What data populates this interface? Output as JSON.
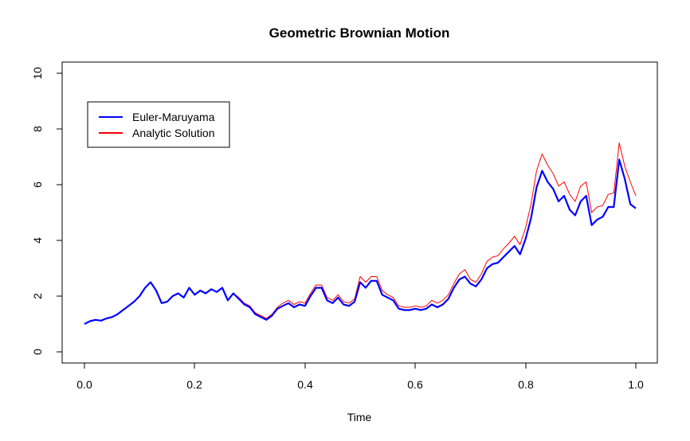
{
  "chart_data": {
    "type": "line",
    "title": "Geometric Brownian Motion",
    "xlabel": "Time",
    "ylabel": "",
    "xlim": [
      0.0,
      1.0
    ],
    "ylim": [
      0,
      10
    ],
    "xticks": [
      "0.0",
      "0.2",
      "0.4",
      "0.6",
      "0.8",
      "1.0"
    ],
    "yticks": [
      "0",
      "2",
      "4",
      "6",
      "8",
      "10"
    ],
    "grid": false,
    "legend_position": "top-left",
    "series": [
      {
        "name": "Euler-Maruyama",
        "color": "#0000ff",
        "x": [
          0.0,
          0.01,
          0.02,
          0.03,
          0.04,
          0.05,
          0.06,
          0.07,
          0.08,
          0.09,
          0.1,
          0.11,
          0.12,
          0.13,
          0.14,
          0.15,
          0.16,
          0.17,
          0.18,
          0.19,
          0.2,
          0.21,
          0.22,
          0.23,
          0.24,
          0.25,
          0.26,
          0.27,
          0.28,
          0.29,
          0.3,
          0.31,
          0.32,
          0.33,
          0.34,
          0.35,
          0.36,
          0.37,
          0.38,
          0.39,
          0.4,
          0.41,
          0.42,
          0.43,
          0.44,
          0.45,
          0.46,
          0.47,
          0.48,
          0.49,
          0.5,
          0.51,
          0.52,
          0.53,
          0.54,
          0.55,
          0.56,
          0.57,
          0.58,
          0.59,
          0.6,
          0.61,
          0.62,
          0.63,
          0.64,
          0.65,
          0.66,
          0.67,
          0.68,
          0.69,
          0.7,
          0.71,
          0.72,
          0.73,
          0.74,
          0.75,
          0.76,
          0.77,
          0.78,
          0.79,
          0.8,
          0.81,
          0.82,
          0.83,
          0.84,
          0.85,
          0.86,
          0.87,
          0.88,
          0.89,
          0.9,
          0.91,
          0.92,
          0.93,
          0.94,
          0.95,
          0.96,
          0.97,
          0.98,
          0.99,
          1.0
        ],
        "values": [
          1.0,
          1.1,
          1.15,
          1.12,
          1.2,
          1.25,
          1.35,
          1.5,
          1.65,
          1.8,
          2.0,
          2.3,
          2.5,
          2.2,
          1.75,
          1.8,
          2.0,
          2.1,
          1.95,
          2.3,
          2.05,
          2.2,
          2.1,
          2.25,
          2.15,
          2.3,
          1.85,
          2.1,
          1.9,
          1.7,
          1.6,
          1.35,
          1.25,
          1.15,
          1.3,
          1.55,
          1.65,
          1.75,
          1.6,
          1.7,
          1.65,
          2.0,
          2.3,
          2.3,
          1.85,
          1.75,
          1.95,
          1.7,
          1.65,
          1.8,
          2.5,
          2.3,
          2.55,
          2.55,
          2.05,
          1.95,
          1.85,
          1.55,
          1.5,
          1.5,
          1.55,
          1.5,
          1.55,
          1.7,
          1.6,
          1.7,
          1.9,
          2.3,
          2.6,
          2.7,
          2.45,
          2.35,
          2.6,
          3.0,
          3.15,
          3.2,
          3.4,
          3.6,
          3.8,
          3.5,
          4.05,
          4.8,
          5.9,
          6.5,
          6.1,
          5.85,
          5.4,
          5.6,
          5.1,
          4.9,
          5.4,
          5.6,
          4.55,
          4.75,
          4.85,
          5.2,
          5.2,
          6.9,
          6.2,
          5.3,
          5.15
        ]
      },
      {
        "name": "Analytic Solution",
        "color": "#ff0000",
        "x": [
          0.0,
          0.01,
          0.02,
          0.03,
          0.04,
          0.05,
          0.06,
          0.07,
          0.08,
          0.09,
          0.1,
          0.11,
          0.12,
          0.13,
          0.14,
          0.15,
          0.16,
          0.17,
          0.18,
          0.19,
          0.2,
          0.21,
          0.22,
          0.23,
          0.24,
          0.25,
          0.26,
          0.27,
          0.28,
          0.29,
          0.3,
          0.31,
          0.32,
          0.33,
          0.34,
          0.35,
          0.36,
          0.37,
          0.38,
          0.39,
          0.4,
          0.41,
          0.42,
          0.43,
          0.44,
          0.45,
          0.46,
          0.47,
          0.48,
          0.49,
          0.5,
          0.51,
          0.52,
          0.53,
          0.54,
          0.55,
          0.56,
          0.57,
          0.58,
          0.59,
          0.6,
          0.61,
          0.62,
          0.63,
          0.64,
          0.65,
          0.66,
          0.67,
          0.68,
          0.69,
          0.7,
          0.71,
          0.72,
          0.73,
          0.74,
          0.75,
          0.76,
          0.77,
          0.78,
          0.79,
          0.8,
          0.81,
          0.82,
          0.83,
          0.84,
          0.85,
          0.86,
          0.87,
          0.88,
          0.89,
          0.9,
          0.91,
          0.92,
          0.93,
          0.94,
          0.95,
          0.96,
          0.97,
          0.98,
          0.99,
          1.0
        ],
        "values": [
          1.0,
          1.1,
          1.15,
          1.12,
          1.2,
          1.25,
          1.35,
          1.5,
          1.65,
          1.8,
          2.0,
          2.3,
          2.5,
          2.2,
          1.75,
          1.8,
          2.0,
          2.1,
          1.95,
          2.3,
          2.05,
          2.2,
          2.1,
          2.25,
          2.15,
          2.3,
          1.85,
          2.1,
          1.95,
          1.75,
          1.65,
          1.4,
          1.3,
          1.2,
          1.35,
          1.6,
          1.75,
          1.85,
          1.7,
          1.8,
          1.75,
          2.1,
          2.4,
          2.4,
          1.95,
          1.85,
          2.05,
          1.8,
          1.75,
          1.9,
          2.7,
          2.5,
          2.7,
          2.7,
          2.2,
          2.05,
          1.95,
          1.65,
          1.6,
          1.6,
          1.65,
          1.6,
          1.65,
          1.85,
          1.75,
          1.85,
          2.05,
          2.45,
          2.8,
          2.95,
          2.6,
          2.5,
          2.8,
          3.25,
          3.4,
          3.45,
          3.7,
          3.9,
          4.15,
          3.85,
          4.45,
          5.3,
          6.5,
          7.1,
          6.7,
          6.4,
          5.95,
          6.1,
          5.65,
          5.4,
          5.95,
          6.1,
          5.0,
          5.2,
          5.25,
          5.65,
          5.7,
          7.5,
          6.65,
          6.1,
          5.6
        ]
      }
    ]
  }
}
